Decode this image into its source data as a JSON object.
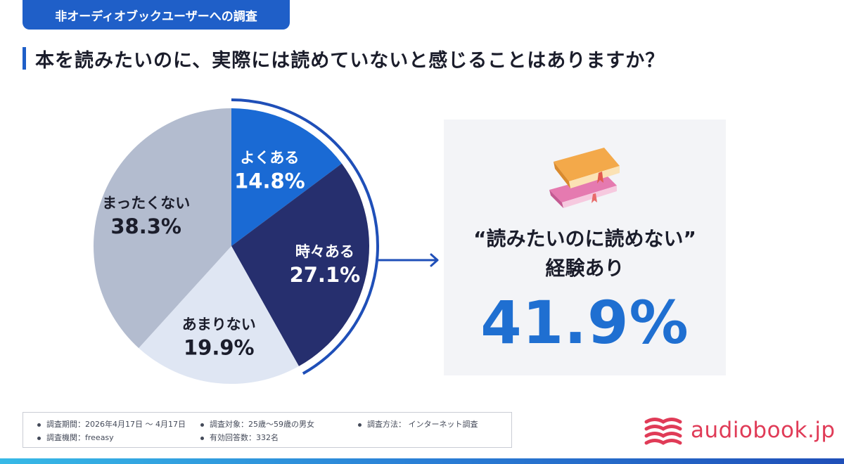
{
  "header": {
    "tag": "非オーディオブックユーザーへの調査",
    "question": "本を読みたいのに、実際には読めていないと感じることはありますか？"
  },
  "chart_data": {
    "type": "pie",
    "title": "",
    "slices": [
      {
        "label": "よくある",
        "value_text": "14.8%",
        "value": 14.8,
        "color": "#1a6ad4",
        "text_color": "#ffffff"
      },
      {
        "label": "時々ある",
        "value_text": "27.1%",
        "value": 27.1,
        "color": "#262f6e",
        "text_color": "#ffffff"
      },
      {
        "label": "あまりない",
        "value_text": "19.9%",
        "value": 19.9,
        "color": "#dfe6f3",
        "text_color": "#1b1d2b"
      },
      {
        "label": "まったくない",
        "value_text": "38.3%",
        "value": 38.3,
        "color": "#b3bccf",
        "text_color": "#1b1d2b"
      }
    ],
    "start_angle_deg": 0,
    "direction": "clockwise",
    "highlight": {
      "slices": [
        "よくある",
        "時々ある"
      ],
      "color": "#1f4fb8"
    }
  },
  "highlight_card": {
    "line1": "“読みたいのに読めない”",
    "line2": "経験あり",
    "value": "41.9%",
    "value_color": "#1f6fd1",
    "icon": "books-icon"
  },
  "footer": {
    "period": "調査期間：2026年4月17日 ～ 4月17日",
    "target": "調査対象：25歳〜59歳の男女",
    "method": "調査方法： インターネット調査",
    "organization": "調査機関：freeasy",
    "responses": "有効回答数：332名"
  },
  "logo": {
    "text": "audiobook.jp",
    "color": "#e03b57",
    "icon": "audiobook-logo-icon"
  }
}
